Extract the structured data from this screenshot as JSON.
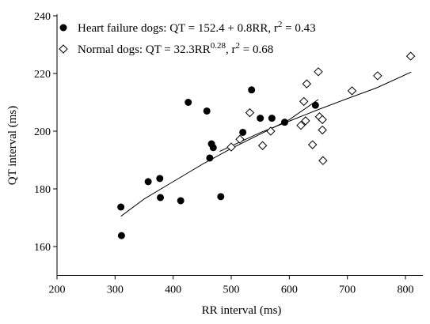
{
  "chart_data": {
    "type": "scatter",
    "x_label": "RR interval (ms)",
    "y_label": "QT interval (ms)",
    "xlim": [
      200,
      830
    ],
    "xticks": [
      200,
      300,
      400,
      500,
      600,
      700,
      800
    ],
    "ylim": [
      150,
      240
    ],
    "yticks": [
      160,
      180,
      200,
      220,
      240
    ],
    "grid": false,
    "legend": "top-left",
    "series": [
      {
        "name": [
          "Heart failure dogs: QT = 152.4 + 0.8RR, r",
          "2",
          " = 0.43"
        ],
        "color": "#000000",
        "marker": "circle-filled",
        "x": [
          310,
          311,
          357,
          377,
          378,
          413,
          426,
          458,
          463,
          466,
          469,
          482,
          520,
          535,
          550,
          570,
          592,
          645
        ],
        "values": [
          173.7,
          163.8,
          182.5,
          183.6,
          177,
          175.9,
          210,
          207,
          190.7,
          195.6,
          194.3,
          177.3,
          199.6,
          214.3,
          204.5,
          204.5,
          203.1,
          209
        ],
        "fit": {
          "x": [
            310,
            350,
            400,
            450,
            500,
            550,
            600,
            650
          ],
          "values": [
            170.5,
            176.5,
            182.5,
            188.5,
            194,
            199,
            204,
            211
          ]
        }
      },
      {
        "name": [
          "Normal dogs: QT = 32.3RR",
          "0.28",
          ", r",
          "2",
          " = 0.68"
        ],
        "color": "#000000",
        "marker": "diamond-open",
        "x": [
          500,
          515,
          532,
          554,
          568,
          620,
          625,
          628,
          630,
          640,
          650,
          652,
          657,
          657,
          658,
          708,
          752,
          809
        ],
        "values": [
          194.5,
          197.2,
          206.4,
          195,
          200,
          202,
          210.3,
          203.6,
          216.4,
          195.3,
          220.6,
          205,
          200.4,
          204,
          189.8,
          214,
          219.2,
          226
        ],
        "fit": {
          "x": [
            480,
            550,
            600,
            650,
            700,
            750,
            810
          ],
          "values": [
            193,
            199.5,
            203.5,
            207.5,
            211.3,
            215,
            220.5
          ]
        }
      }
    ]
  }
}
